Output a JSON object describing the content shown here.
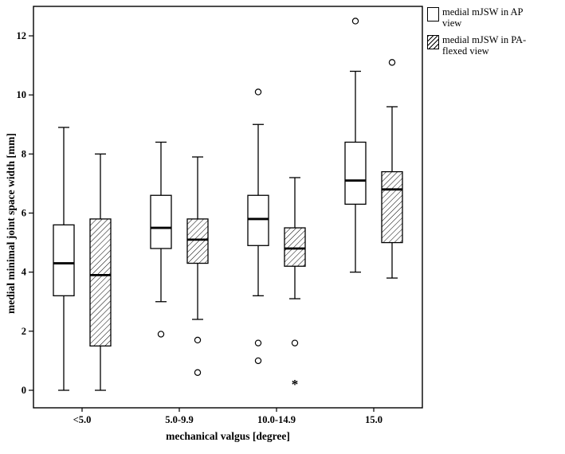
{
  "figure": {
    "background": "#ffffff",
    "axis_color": "#000000"
  },
  "legend": {
    "items": [
      {
        "label": "medial mJSW in AP view",
        "lines": [
          "medial mJSW in AP",
          "view"
        ],
        "swatch": "plain"
      },
      {
        "label": "medial mJSW in PA-flexed view",
        "lines": [
          "medial mJSW in PA-",
          "flexed view"
        ],
        "swatch": "hatched"
      }
    ]
  },
  "chart_data": {
    "type": "boxplot",
    "title": "",
    "xlabel": "mechanical valgus [degree]",
    "ylabel": "medial minimal joint space width [mm]",
    "ylim": [
      0,
      13
    ],
    "yticks": [
      0,
      2,
      4,
      6,
      8,
      10,
      12
    ],
    "categories": [
      "<5.0",
      "5.0-9.9",
      "10.0-14.9",
      "15.0"
    ],
    "grid": false,
    "legend_position": "top-right-outside",
    "series": [
      {
        "name": "medial mJSW in AP view",
        "style": "plain",
        "boxes": [
          {
            "whisker_low": 0.0,
            "q1": 3.2,
            "median": 4.3,
            "q3": 5.6,
            "whisker_high": 8.9,
            "outliers": [],
            "extremes": []
          },
          {
            "whisker_low": 3.0,
            "q1": 4.8,
            "median": 5.5,
            "q3": 6.6,
            "whisker_high": 8.4,
            "outliers": [
              1.9
            ],
            "extremes": []
          },
          {
            "whisker_low": 3.2,
            "q1": 4.9,
            "median": 5.8,
            "q3": 6.6,
            "whisker_high": 9.0,
            "outliers": [
              10.1,
              1.6,
              1.0
            ],
            "extremes": []
          },
          {
            "whisker_low": 4.0,
            "q1": 6.3,
            "median": 7.1,
            "q3": 8.4,
            "whisker_high": 10.8,
            "outliers": [
              12.5
            ],
            "extremes": []
          }
        ]
      },
      {
        "name": "medial mJSW in PA-flexed view",
        "style": "hatched",
        "boxes": [
          {
            "whisker_low": 0.0,
            "q1": 1.5,
            "median": 3.9,
            "q3": 5.8,
            "whisker_high": 8.0,
            "outliers": [],
            "extremes": []
          },
          {
            "whisker_low": 2.4,
            "q1": 4.3,
            "median": 5.1,
            "q3": 5.8,
            "whisker_high": 7.9,
            "outliers": [
              1.7,
              0.6
            ],
            "extremes": []
          },
          {
            "whisker_low": 3.1,
            "q1": 4.2,
            "median": 4.8,
            "q3": 5.5,
            "whisker_high": 7.2,
            "outliers": [
              1.6
            ],
            "extremes": [
              0.3
            ]
          },
          {
            "whisker_low": 3.8,
            "q1": 5.0,
            "median": 6.8,
            "q3": 7.4,
            "whisker_high": 9.6,
            "outliers": [
              11.1
            ],
            "extremes": []
          }
        ]
      }
    ]
  }
}
